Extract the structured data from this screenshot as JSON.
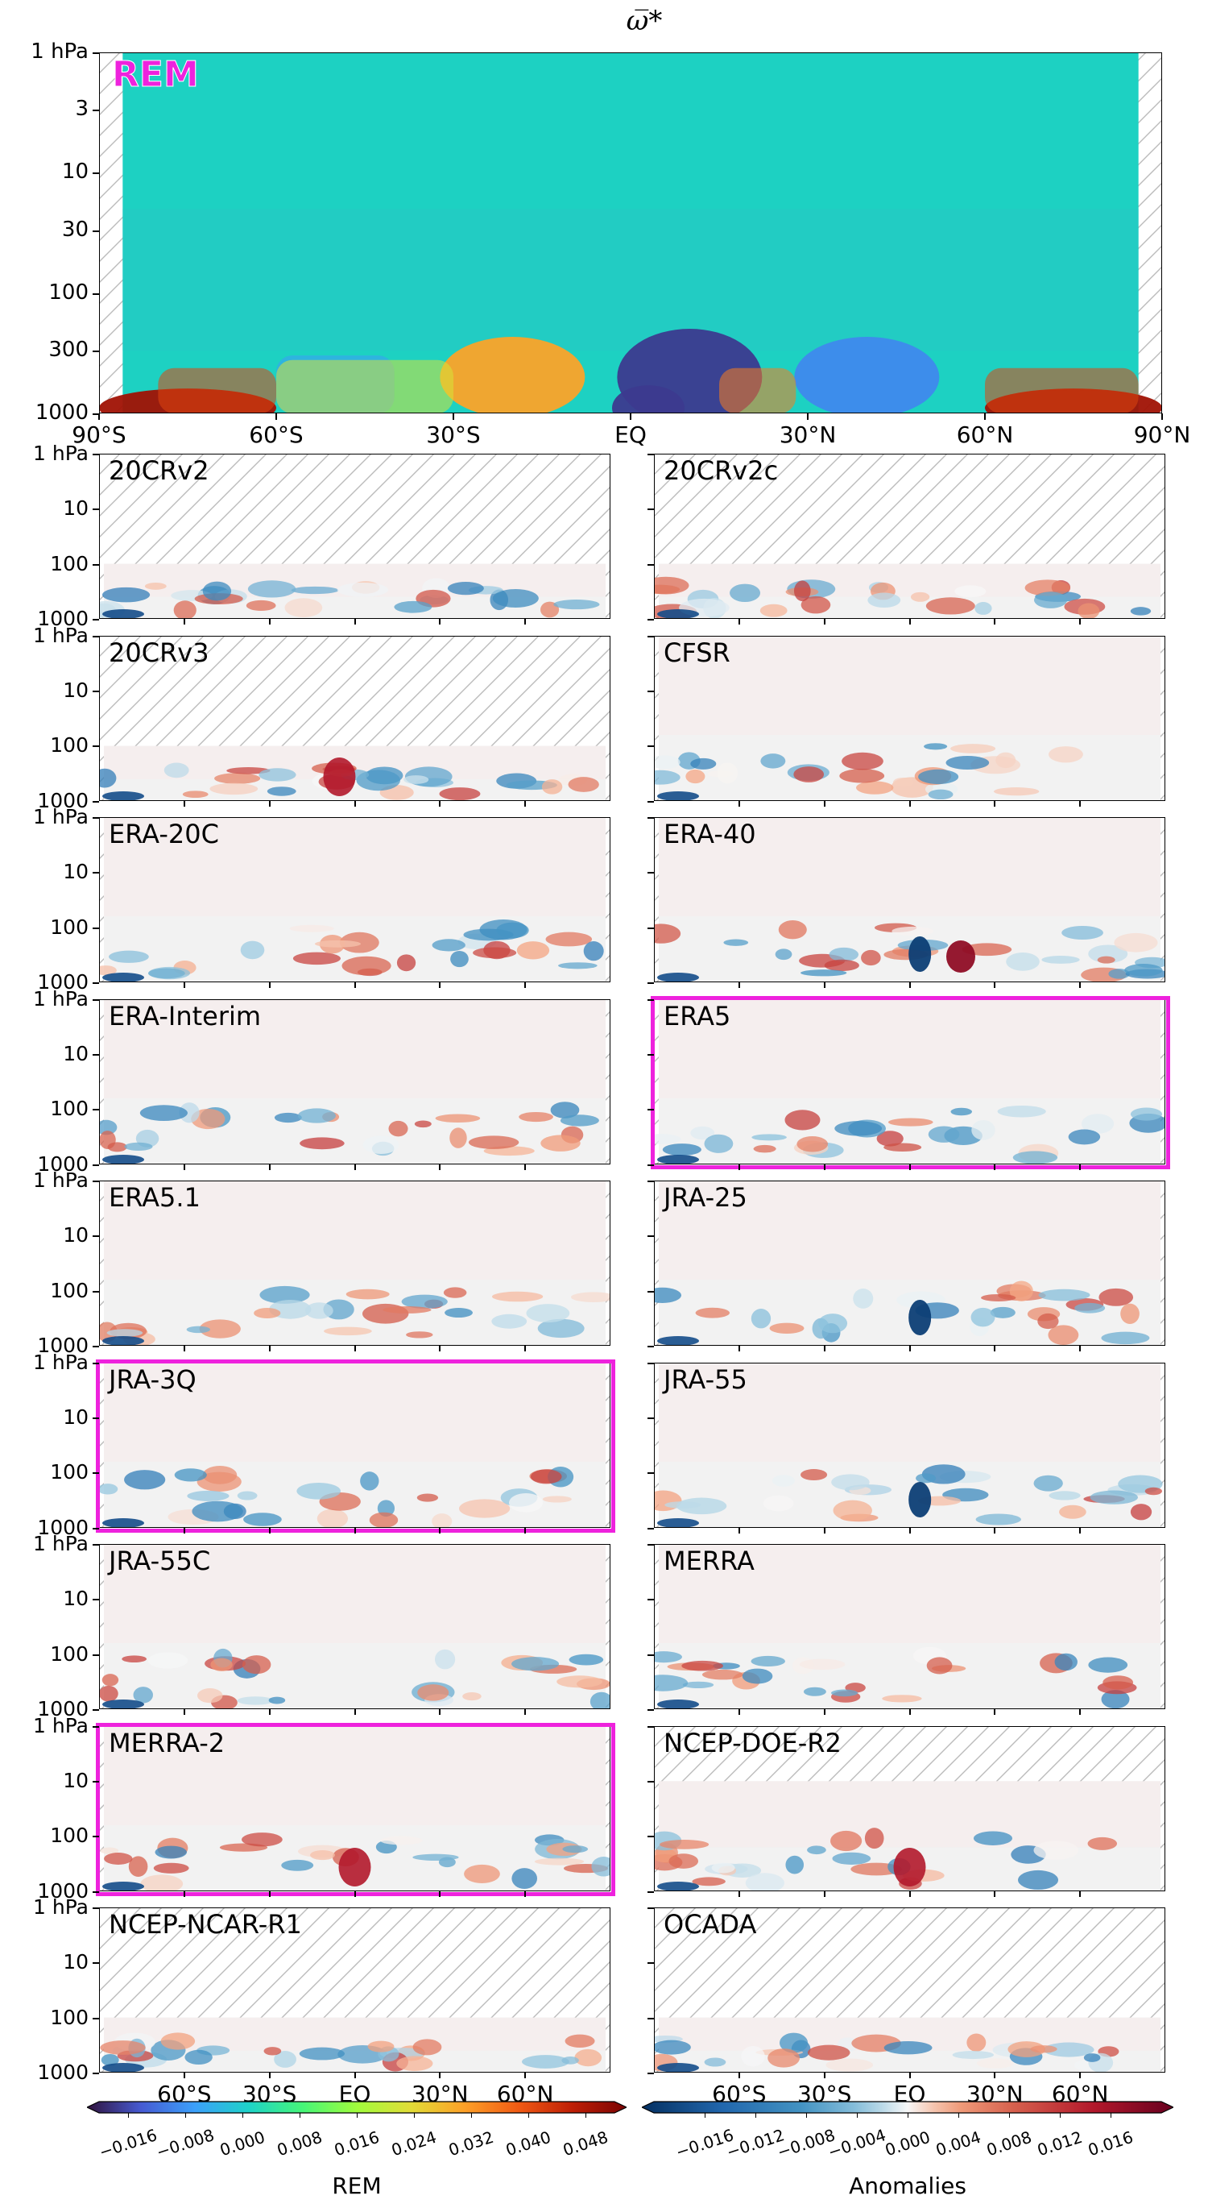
{
  "figure": {
    "title": "ω̅*"
  },
  "chart_data": [
    {
      "type": "heatmap",
      "panel": "REM",
      "title": "ω̅*",
      "x_ticks": [
        "90°S",
        "60°S",
        "30°S",
        "EQ",
        "30°N",
        "60°N",
        "90°N"
      ],
      "y_ticks": [
        "1 hPa",
        "3",
        "10",
        "30",
        "100",
        "300",
        "1000"
      ],
      "xlim": [
        -90,
        90
      ],
      "ylim_hPa": [
        1000,
        1
      ],
      "y_scale": "log",
      "colormap": "turbo",
      "features": [
        {
          "lat": 10,
          "p_hPa": 500,
          "value": -0.016
        },
        {
          "lat": 3,
          "p_hPa": 900,
          "value": -0.016
        },
        {
          "lat": -75,
          "p_hPa": 900,
          "value": 0.048
        },
        {
          "lat": 75,
          "p_hPa": 900,
          "value": 0.048
        },
        {
          "lat": -20,
          "p_hPa": 500,
          "value": 0.03
        },
        {
          "lat": 40,
          "p_hPa": 500,
          "value": -0.008
        }
      ]
    }
  ],
  "anomaly_panels": [
    {
      "name": "20CRv2",
      "top_hPa": 100
    },
    {
      "name": "20CRv2c",
      "top_hPa": 100
    },
    {
      "name": "20CRv3",
      "top_hPa": 100
    },
    {
      "name": "CFSR",
      "top_hPa": 1
    },
    {
      "name": "ERA-20C",
      "top_hPa": 1
    },
    {
      "name": "ERA-40",
      "top_hPa": 1
    },
    {
      "name": "ERA-Interim",
      "top_hPa": 1
    },
    {
      "name": "ERA5",
      "top_hPa": 1,
      "highlighted": true
    },
    {
      "name": "ERA5.1",
      "top_hPa": 1
    },
    {
      "name": "JRA-25",
      "top_hPa": 1
    },
    {
      "name": "JRA-3Q",
      "top_hPa": 1,
      "highlighted": true
    },
    {
      "name": "JRA-55",
      "top_hPa": 1
    },
    {
      "name": "JRA-55C",
      "top_hPa": 1
    },
    {
      "name": "MERRA",
      "top_hPa": 1
    },
    {
      "name": "MERRA-2",
      "top_hPa": 1,
      "highlighted": true
    },
    {
      "name": "NCEP-DOE-R2",
      "top_hPa": 10
    },
    {
      "name": "NCEP-NCAR-R1",
      "top_hPa": 100
    },
    {
      "name": "OCADA",
      "top_hPa": 100
    }
  ],
  "small_y_ticks": [
    "1 hPa",
    "10",
    "100",
    "1000"
  ],
  "bottom_x_ticks": [
    "60°S",
    "30°S",
    "EQ",
    "30°N",
    "60°N"
  ],
  "colorbars": [
    {
      "name": "REM",
      "label": "REM",
      "ticks": [
        "−0.016",
        "−0.008",
        "0.000",
        "0.008",
        "0.016",
        "0.024",
        "0.032",
        "0.040",
        "0.048"
      ],
      "range": [
        -0.02,
        0.052
      ],
      "colormap": "turbo"
    },
    {
      "name": "Anomalies",
      "label": "Anomalies",
      "ticks": [
        "−0.016",
        "−0.012",
        "−0.008",
        "−0.004",
        "0.000",
        "0.004",
        "0.008",
        "0.012",
        "0.016"
      ],
      "range": [
        -0.02,
        0.02
      ],
      "colormap": "RdBu_r"
    }
  ],
  "colors": {
    "highlight": "#ee22dd",
    "rem_label": "#ee22dd",
    "background_field": "#1dd1c2",
    "neutral_anomaly": "#f2f2f2",
    "hatch": "#bbbbbb"
  }
}
